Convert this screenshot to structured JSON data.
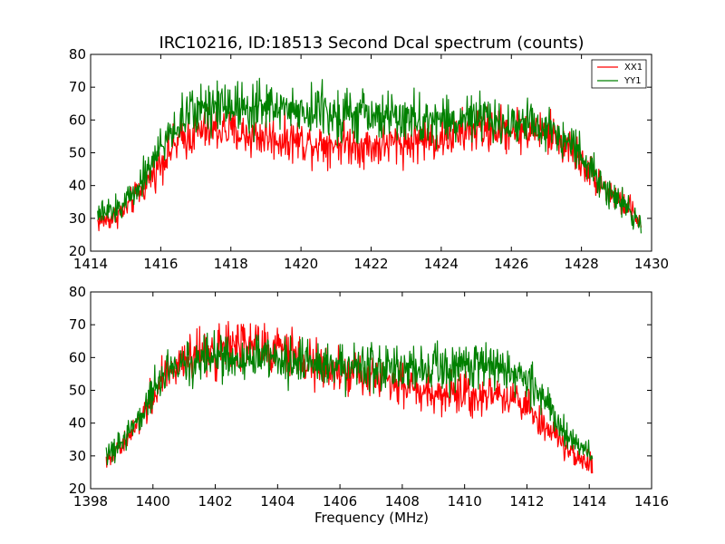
{
  "chart_data": [
    {
      "type": "line",
      "title": "IRC10216, ID:18513 Second Dcal spectrum (counts)",
      "xlabel": "",
      "ylabel": "",
      "xlim": [
        1414,
        1430
      ],
      "ylim": [
        20,
        80
      ],
      "xticks": [
        "1414",
        "1416",
        "1418",
        "1420",
        "1422",
        "1424",
        "1426",
        "1428",
        "1430"
      ],
      "yticks": [
        "20",
        "30",
        "40",
        "50",
        "60",
        "70",
        "80"
      ],
      "legend": {
        "position": "top-right",
        "entries": [
          "XX1",
          "YY1"
        ]
      },
      "series": [
        {
          "name": "XX1",
          "color": "#ff0000",
          "x": [
            1414.2,
            1414.6,
            1415.0,
            1415.4,
            1415.8,
            1416.2,
            1416.6,
            1417.0,
            1417.4,
            1417.8,
            1418.2,
            1418.6,
            1419.0,
            1419.4,
            1419.8,
            1420.2,
            1420.6,
            1421.0,
            1421.4,
            1421.8,
            1422.2,
            1422.6,
            1423.0,
            1423.4,
            1423.8,
            1424.2,
            1424.6,
            1425.0,
            1425.4,
            1425.8,
            1426.2,
            1426.6,
            1427.0,
            1427.4,
            1427.8,
            1428.2,
            1428.6,
            1429.0,
            1429.4,
            1429.7
          ],
          "y": [
            29,
            30,
            33,
            38,
            44,
            50,
            54,
            56,
            57,
            57,
            56,
            55,
            55,
            54,
            54,
            53,
            53,
            53,
            53,
            52,
            52,
            53,
            53,
            54,
            54,
            55,
            56,
            57,
            57,
            57,
            57,
            57,
            56,
            54,
            50,
            45,
            40,
            36,
            33,
            28
          ]
        },
        {
          "name": "YY1",
          "color": "#008000",
          "x": [
            1414.2,
            1414.6,
            1415.0,
            1415.4,
            1415.8,
            1416.2,
            1416.6,
            1417.0,
            1417.4,
            1417.8,
            1418.2,
            1418.6,
            1419.0,
            1419.4,
            1419.8,
            1420.2,
            1420.6,
            1421.0,
            1421.4,
            1421.8,
            1422.2,
            1422.6,
            1423.0,
            1423.4,
            1423.8,
            1424.2,
            1424.6,
            1425.0,
            1425.4,
            1425.8,
            1426.2,
            1426.6,
            1427.0,
            1427.4,
            1427.8,
            1428.2,
            1428.6,
            1429.0,
            1429.4,
            1429.7
          ],
          "y": [
            31,
            32,
            35,
            41,
            48,
            55,
            60,
            63,
            65,
            65,
            65,
            64,
            64,
            64,
            63,
            63,
            63,
            62,
            62,
            61,
            61,
            61,
            60,
            60,
            60,
            60,
            60,
            60,
            60,
            59,
            59,
            59,
            58,
            56,
            52,
            46,
            41,
            36,
            32,
            28
          ]
        }
      ]
    },
    {
      "type": "line",
      "title": "",
      "xlabel": "Frequency (MHz)",
      "ylabel": "",
      "xlim": [
        1398,
        1416
      ],
      "ylim": [
        20,
        80
      ],
      "xticks": [
        "1398",
        "1400",
        "1402",
        "1404",
        "1406",
        "1408",
        "1410",
        "1412",
        "1414",
        "1416"
      ],
      "yticks": [
        "20",
        "30",
        "40",
        "50",
        "60",
        "70",
        "80"
      ],
      "series": [
        {
          "color": "#ff0000",
          "x": [
            1398.5,
            1398.9,
            1399.3,
            1399.7,
            1400.1,
            1400.5,
            1400.9,
            1401.3,
            1401.7,
            1402.1,
            1402.5,
            1402.9,
            1403.3,
            1403.7,
            1404.1,
            1404.5,
            1404.9,
            1405.3,
            1405.7,
            1406.1,
            1406.5,
            1406.9,
            1407.3,
            1407.7,
            1408.1,
            1408.5,
            1408.9,
            1409.3,
            1409.7,
            1410.1,
            1410.5,
            1410.9,
            1411.3,
            1411.7,
            1412.1,
            1412.5,
            1412.9,
            1413.3,
            1413.7,
            1414.1
          ],
          "y": [
            28,
            32,
            37,
            43,
            50,
            56,
            59,
            61,
            62,
            62,
            63,
            63,
            63,
            62,
            62,
            61,
            60,
            58,
            57,
            56,
            55,
            54,
            53,
            52,
            51,
            50,
            50,
            49,
            49,
            49,
            49,
            49,
            48,
            47,
            44,
            40,
            36,
            32,
            29,
            28
          ]
        },
        {
          "color": "#008000",
          "x": [
            1398.5,
            1398.9,
            1399.3,
            1399.7,
            1400.1,
            1400.5,
            1400.9,
            1401.3,
            1401.7,
            1402.1,
            1402.5,
            1402.9,
            1403.3,
            1403.7,
            1404.1,
            1404.5,
            1404.9,
            1405.3,
            1405.7,
            1406.1,
            1406.5,
            1406.9,
            1407.3,
            1407.7,
            1408.1,
            1408.5,
            1408.9,
            1409.3,
            1409.7,
            1410.1,
            1410.5,
            1410.9,
            1411.3,
            1411.7,
            1412.1,
            1412.5,
            1412.9,
            1413.3,
            1413.7,
            1414.1
          ],
          "y": [
            30,
            33,
            38,
            44,
            51,
            56,
            58,
            59,
            60,
            60,
            60,
            60,
            60,
            60,
            59,
            59,
            59,
            58,
            58,
            57,
            57,
            57,
            56,
            56,
            56,
            56,
            56,
            56,
            57,
            57,
            57,
            57,
            57,
            56,
            53,
            47,
            41,
            36,
            33,
            31
          ]
        }
      ]
    }
  ]
}
